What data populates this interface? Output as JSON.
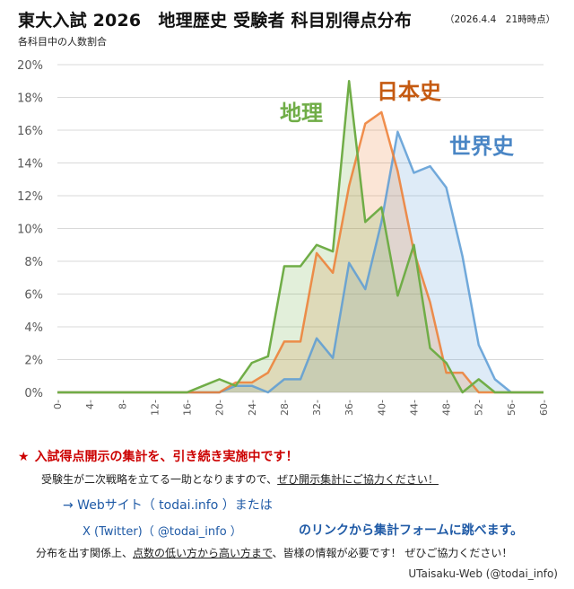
{
  "header": {
    "title": "東大入試 2026　地理歴史  受験者  科目別得点分布",
    "asof": "（2026.4.4　21時時点）",
    "subtitle": "各科目中の人数割合"
  },
  "chart_data": {
    "type": "area",
    "x_ticks": [
      0,
      4,
      8,
      12,
      16,
      20,
      24,
      28,
      32,
      36,
      40,
      44,
      48,
      52,
      56,
      60
    ],
    "xlim": [
      0,
      60
    ],
    "ylim": [
      0,
      20
    ],
    "y_ticks": [
      "0%",
      "2%",
      "4%",
      "6%",
      "8%",
      "10%",
      "12%",
      "14%",
      "16%",
      "18%",
      "20%"
    ],
    "grid": true,
    "x": [
      0,
      2,
      4,
      6,
      8,
      10,
      12,
      14,
      16,
      18,
      20,
      22,
      24,
      26,
      28,
      30,
      32,
      34,
      36,
      38,
      40,
      42,
      44,
      46,
      48,
      50,
      52,
      54,
      56,
      58,
      60
    ],
    "series": [
      {
        "name": "地理",
        "color": "#70ad47",
        "label_color": "#70ad47",
        "values": [
          0,
          0,
          0,
          0,
          0,
          0,
          0,
          0,
          0,
          0.4,
          0.8,
          0.4,
          1.8,
          2.2,
          7.7,
          7.7,
          9.0,
          8.6,
          19.0,
          10.4,
          11.3,
          5.9,
          9.0,
          2.7,
          1.8,
          0,
          0.8,
          0,
          0,
          0,
          0
        ]
      },
      {
        "name": "日本史",
        "color": "#ed7d31",
        "label_color": "#c55a11",
        "values": [
          0,
          0,
          0,
          0,
          0,
          0,
          0,
          0,
          0,
          0,
          0,
          0.6,
          0.6,
          1.2,
          3.1,
          3.1,
          8.5,
          7.3,
          12.6,
          16.4,
          17.1,
          13.5,
          8.6,
          5.5,
          1.2,
          1.2,
          0,
          0,
          0,
          0,
          0
        ]
      },
      {
        "name": "世界史",
        "color": "#5b9bd5",
        "label_color": "#4a86c5",
        "values": [
          0,
          0,
          0,
          0,
          0,
          0,
          0,
          0,
          0,
          0,
          0,
          0.4,
          0.4,
          0,
          0.8,
          0.8,
          3.3,
          2.1,
          7.9,
          6.3,
          10.4,
          15.9,
          13.4,
          13.8,
          12.5,
          8.3,
          2.9,
          0.8,
          0,
          0,
          0
        ]
      }
    ]
  },
  "notes": {
    "star": "★",
    "headline": "入試得点開示の集計を、引き続き実施中です！",
    "line2_plain": "受験生が二次戦略を立てる一助となりますので、",
    "line2_underlined": "ぜひ開示集計にご協力ください！",
    "line3": "→ Webサイト（ todai.info ）または",
    "line4": "X (Twitter)（ @todai_info ）",
    "line4_tail": "のリンクから集計フォームに跳べます。",
    "line5_a": "分布を出す関係上、",
    "line5_underlined": "点数の低い方から高い方まで",
    "line5_b": "、皆様の情報が必要です！  ぜひご協力ください！"
  },
  "footer": {
    "credit": "UTaisaku-Web (@todai_info)"
  }
}
